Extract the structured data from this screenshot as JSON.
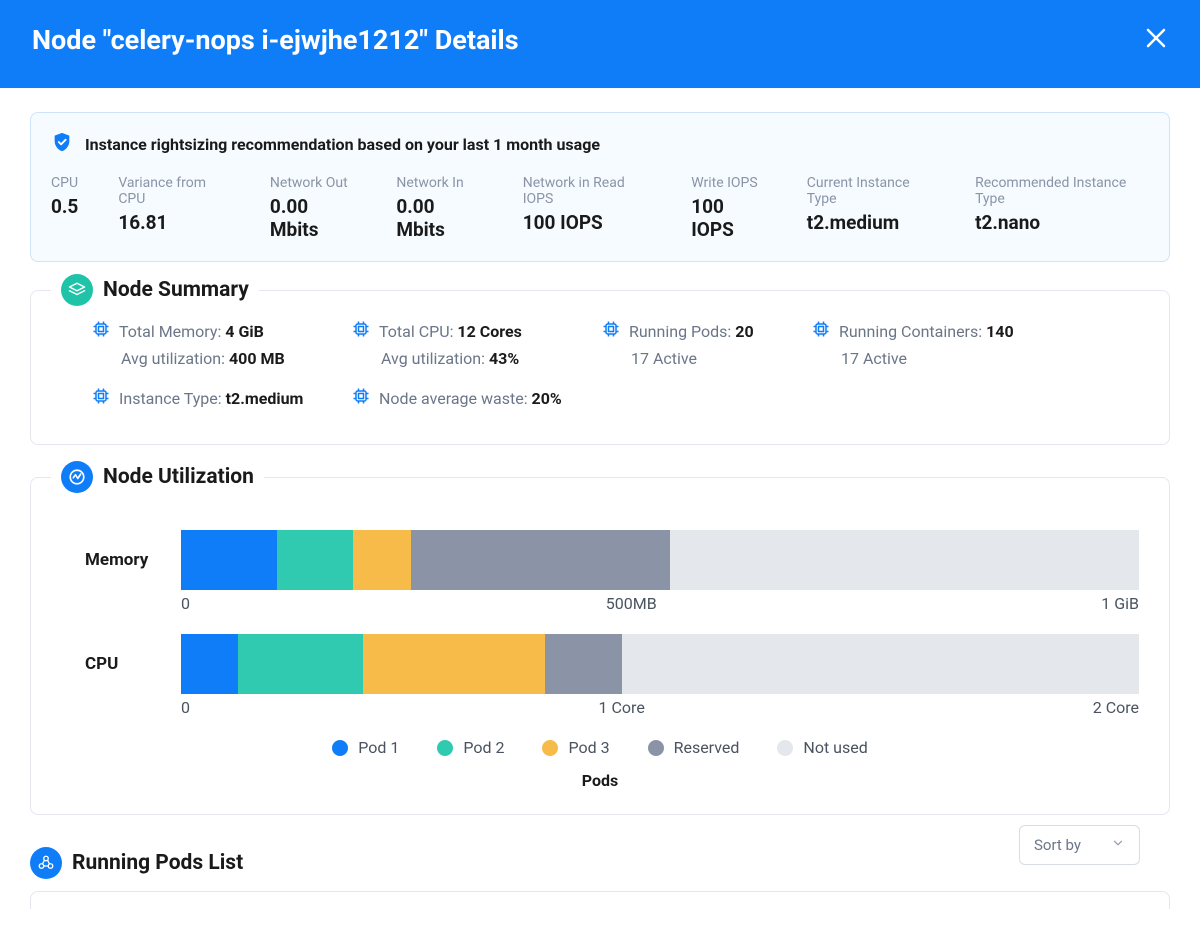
{
  "colors": {
    "primary": "#107df8",
    "teal": "#1fc3a8",
    "text": "#1a1a1a",
    "muted": "#8a94a6",
    "border": "#e4e8ee",
    "softBg": "#f6fbff",
    "softBorder": "#cfe4fb"
  },
  "header": {
    "title": "Node \"celery-nops i-ejwjhe1212\" Details"
  },
  "recommendation": {
    "title": "Instance rightsizing recommendation based on your last 1 month usage",
    "metrics": [
      {
        "label": "CPU",
        "value": "0.5"
      },
      {
        "label": "Variance from CPU",
        "value": "16.81"
      },
      {
        "label": "Network Out",
        "value": "0.00 Mbits"
      },
      {
        "label": "Network In",
        "value": "0.00 Mbits"
      },
      {
        "label": "Network in Read IOPS",
        "value": "100 IOPS"
      },
      {
        "label": "Write IOPS",
        "value": "100 IOPS"
      },
      {
        "label": "Current Instance Type",
        "value": "t2.medium"
      },
      {
        "label": "Recommended Instance Type",
        "value": "t2.nano"
      }
    ]
  },
  "summary": {
    "title": "Node Summary",
    "iconBg": "#1fc3a8",
    "row1": {
      "memory": {
        "label": "Total Memory:",
        "value": "4 GiB",
        "sub_label": "Avg utilization:",
        "sub_value": "400 MB"
      },
      "cpu": {
        "label": "Total CPU:",
        "value": "12 Cores",
        "sub_label": "Avg utilization:",
        "sub_value": "43%"
      },
      "pods": {
        "label": "Running Pods:",
        "value": "20",
        "sub": "17 Active"
      },
      "containers": {
        "label": "Running Containers:",
        "value": "140",
        "sub": "17 Active"
      }
    },
    "row2": {
      "instance": {
        "label": "Instance Type:",
        "value": "t2.medium"
      },
      "waste": {
        "label": "Node average waste:",
        "value": "20%"
      }
    }
  },
  "utilization": {
    "title": "Node Utilization",
    "iconBg": "#107df8",
    "legend_caption": "Pods",
    "legend": [
      {
        "label": "Pod 1",
        "color": "#107df8"
      },
      {
        "label": "Pod 2",
        "color": "#2fcab0"
      },
      {
        "label": "Pod 3",
        "color": "#f7bb4a"
      },
      {
        "label": "Reserved",
        "color": "#8a94a6"
      },
      {
        "label": "Not used",
        "color": "#e4e7ec"
      }
    ],
    "rows": [
      {
        "label": "Memory",
        "segments": [
          {
            "color": "#107df8",
            "percent": 10
          },
          {
            "color": "#2fcab0",
            "percent": 8
          },
          {
            "color": "#f7bb4a",
            "percent": 6
          },
          {
            "color": "#8a94a6",
            "percent": 27
          },
          {
            "color": "#e4e7ec",
            "percent": 49
          }
        ],
        "axis": {
          "start": "0",
          "mid": "500MB",
          "end": "1 GiB",
          "midPos": 47
        }
      },
      {
        "label": "CPU",
        "segments": [
          {
            "color": "#107df8",
            "percent": 6
          },
          {
            "color": "#2fcab0",
            "percent": 13
          },
          {
            "color": "#f7bb4a",
            "percent": 19
          },
          {
            "color": "#8a94a6",
            "percent": 8
          },
          {
            "color": "#e4e7ec",
            "percent": 54
          }
        ],
        "axis": {
          "start": "0",
          "mid": "1 Core",
          "end": "2 Core",
          "midPos": 46
        }
      }
    ]
  },
  "podsList": {
    "title": "Running Pods List",
    "iconBg": "#107df8",
    "sortBy": "Sort by"
  }
}
